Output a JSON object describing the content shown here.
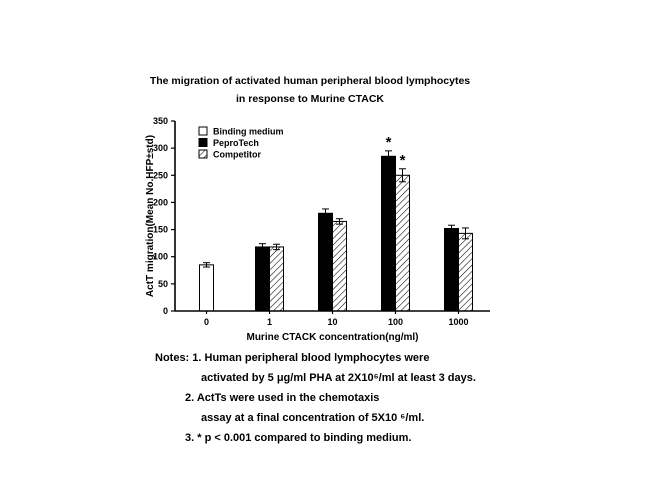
{
  "chart_data": {
    "type": "bar",
    "title": "The migration of activated human peripheral blood lymphocytes in response to Murine CTACK",
    "title_lines": [
      "The migration of activated human peripheral blood lymphocytes",
      "in response to Murine CTACK"
    ],
    "xlabel": "Murine CTACK concentration(ng/ml)",
    "ylabel": "ActT migration(Mean No.HFP±std)",
    "ylim": [
      0,
      350
    ],
    "yticks": [
      0,
      50,
      100,
      150,
      200,
      250,
      300,
      350
    ],
    "categories": [
      "0",
      "1",
      "10",
      "100",
      "1000"
    ],
    "series": [
      {
        "name": "Binding medium",
        "style": "open",
        "values": [
          85,
          null,
          null,
          null,
          null
        ],
        "errors": [
          4,
          null,
          null,
          null,
          null
        ]
      },
      {
        "name": "PeproTech",
        "style": "solid",
        "values": [
          null,
          118,
          180,
          285,
          152
        ],
        "errors": [
          null,
          6,
          8,
          10,
          6
        ]
      },
      {
        "name": "Competitor",
        "style": "hatched",
        "values": [
          null,
          118,
          165,
          250,
          143
        ],
        "errors": [
          null,
          5,
          5,
          12,
          10
        ]
      }
    ],
    "annotations": [
      {
        "text": "*",
        "category": "100",
        "series": "PeproTech"
      },
      {
        "text": "*",
        "category": "100",
        "series": "Competitor"
      }
    ],
    "legend_position": "top-left",
    "grid": false,
    "colors": {
      "bar_open": "#ffffff",
      "bar_solid": "#000000",
      "axis": "#000000"
    }
  },
  "notes": {
    "lines": [
      "Notes: 1. Human peripheral blood lymphocytes were",
      "activated by 5 μg/ml PHA at 2X10⁶/ml at least 3 days.",
      "2. ActTs were used in the chemotaxis",
      "assay at a final concentration of 5X10 ⁶/ml.",
      "3. * p < 0.001 compared to binding medium."
    ]
  }
}
